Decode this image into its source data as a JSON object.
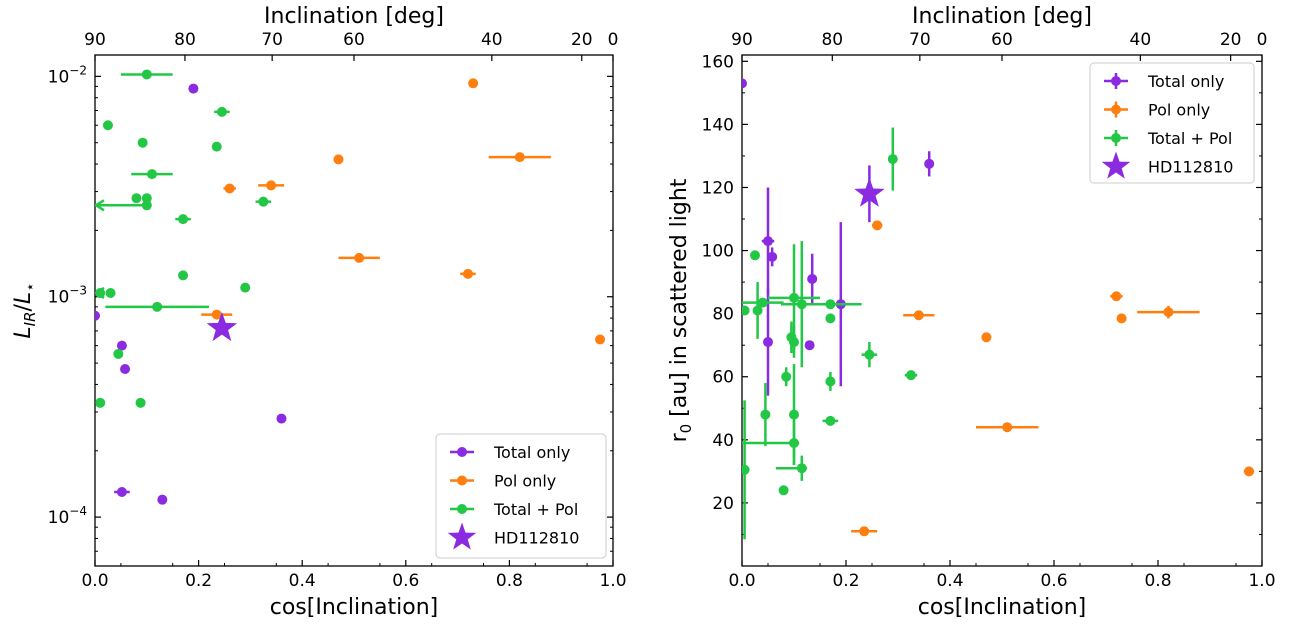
{
  "chart_data": [
    {
      "type": "scatter",
      "xlabel": "cos[Inclination]",
      "ylabel": "L_IR/L_*",
      "top_xlabel": "Inclination [deg]",
      "xlim": [
        0,
        1
      ],
      "ylim": [
        6e-05,
        0.0125
      ],
      "yscale": "log",
      "x_ticks": [
        "0.0",
        "0.2",
        "0.4",
        "0.6",
        "0.8",
        "1.0"
      ],
      "y_ticks": [
        {
          "v": 0.0001,
          "base": "10",
          "exp": "−4"
        },
        {
          "v": 0.001,
          "base": "10",
          "exp": "−3"
        },
        {
          "v": 0.01,
          "base": "10",
          "exp": "−2"
        }
      ],
      "top_ticks": [
        {
          "deg": 90,
          "label": "90"
        },
        {
          "deg": 80,
          "label": "80"
        },
        {
          "deg": 70,
          "label": "70"
        },
        {
          "deg": 60,
          "label": "60"
        },
        {
          "deg": 40,
          "label": "40"
        },
        {
          "deg": 20,
          "label": "20"
        },
        {
          "deg": 0,
          "label": "0"
        }
      ],
      "legend_position": "bottom-right",
      "series": [
        {
          "name": "Total only",
          "color": "#8a2be2",
          "points": [
            {
              "x": 0.19,
              "y": 0.0088
            },
            {
              "x": 0.0,
              "y": 0.00082
            },
            {
              "x": 0.052,
              "y": 0.0006
            },
            {
              "x": 0.058,
              "y": 0.00047
            },
            {
              "x": 0.36,
              "y": 0.00028
            },
            {
              "x": 0.052,
              "y": 0.00013,
              "xerr": 0.015
            },
            {
              "x": 0.13,
              "y": 0.00012
            }
          ]
        },
        {
          "name": "Pol only",
          "color": "#ff7f0e",
          "points": [
            {
              "x": 0.73,
              "y": 0.0093
            },
            {
              "x": 0.47,
              "y": 0.0042
            },
            {
              "x": 0.82,
              "y": 0.0043,
              "xerr": 0.06
            },
            {
              "x": 0.34,
              "y": 0.0032,
              "xerr": 0.025
            },
            {
              "x": 0.26,
              "y": 0.0031,
              "xerr": 0.012
            },
            {
              "x": 0.51,
              "y": 0.0015,
              "xerr": 0.04
            },
            {
              "x": 0.72,
              "y": 0.00127,
              "xerr": 0.015
            },
            {
              "x": 0.235,
              "y": 0.00083,
              "xerr": 0.03
            },
            {
              "x": 0.975,
              "y": 0.00064
            }
          ]
        },
        {
          "name": "Total + Pol",
          "color": "#22c745",
          "points": [
            {
              "x": 0.1,
              "y": 0.0102,
              "xerr": 0.05
            },
            {
              "x": 0.245,
              "y": 0.0069,
              "xerr": 0.015
            },
            {
              "x": 0.025,
              "y": 0.006
            },
            {
              "x": 0.092,
              "y": 0.005
            },
            {
              "x": 0.235,
              "y": 0.0048
            },
            {
              "x": 0.11,
              "y": 0.0036,
              "xerr": 0.04
            },
            {
              "x": 0.08,
              "y": 0.0028
            },
            {
              "x": 0.1,
              "y": 0.0028
            },
            {
              "x": 0.1,
              "y": 0.0026,
              "xleft": 0.1,
              "arrow": "left"
            },
            {
              "x": 0.325,
              "y": 0.0027,
              "xerr": 0.015
            },
            {
              "x": 0.17,
              "y": 0.00225,
              "xerr": 0.015
            },
            {
              "x": 0.17,
              "y": 0.00125
            },
            {
              "x": 0.29,
              "y": 0.0011
            },
            {
              "x": 0.03,
              "y": 0.00104
            },
            {
              "x": 0.01,
              "y": 0.00104,
              "xleft": 0.01,
              "arrow": "left"
            },
            {
              "x": 0.12,
              "y": 0.0009,
              "xleft": 0.1,
              "xright": 0.1
            },
            {
              "x": 0.045,
              "y": 0.00055
            },
            {
              "x": 0.01,
              "y": 0.00033
            },
            {
              "x": 0.088,
              "y": 0.00033
            }
          ]
        }
      ],
      "highlight": {
        "name": "HD112810",
        "color": "#8a2be2",
        "x": 0.245,
        "y": 0.00072,
        "marker": "star"
      }
    },
    {
      "type": "scatter",
      "xlabel": "cos[Inclination]",
      "ylabel": "r0 [au] in scattered light",
      "top_xlabel": "Inclination [deg]",
      "xlim": [
        0,
        1
      ],
      "ylim": [
        0,
        162
      ],
      "yscale": "linear",
      "x_ticks": [
        "0.0",
        "0.2",
        "0.4",
        "0.6",
        "0.8",
        "1.0"
      ],
      "y_ticks": [
        20,
        40,
        60,
        80,
        100,
        120,
        140,
        160
      ],
      "top_ticks": [
        {
          "deg": 90,
          "label": "90"
        },
        {
          "deg": 80,
          "label": "80"
        },
        {
          "deg": 70,
          "label": "70"
        },
        {
          "deg": 60,
          "label": "60"
        },
        {
          "deg": 40,
          "label": "40"
        },
        {
          "deg": 20,
          "label": "20"
        },
        {
          "deg": 0,
          "label": "0"
        }
      ],
      "legend_position": "top-right",
      "series": [
        {
          "name": "Total only",
          "color": "#8a2be2",
          "points": [
            {
              "x": 0.0,
              "y": 153
            },
            {
              "x": 0.36,
              "y": 127.5,
              "yerr": 4
            },
            {
              "x": 0.05,
              "y": 103,
              "yerr": 17,
              "xerr": 0.012
            },
            {
              "x": 0.058,
              "y": 98,
              "yerr": 3
            },
            {
              "x": 0.135,
              "y": 91,
              "yerr": 8
            },
            {
              "x": 0.19,
              "y": 83,
              "yerr": 26
            },
            {
              "x": 0.05,
              "y": 71,
              "yerr": 17
            },
            {
              "x": 0.13,
              "y": 70
            }
          ]
        },
        {
          "name": "Pol only",
          "color": "#ff7f0e",
          "points": [
            {
              "x": 0.26,
              "y": 108,
              "xerr": 0.01
            },
            {
              "x": 0.72,
              "y": 85.5,
              "xerr": 0.012
            },
            {
              "x": 0.82,
              "y": 80.5,
              "xerr": 0.06,
              "yerr": 2
            },
            {
              "x": 0.73,
              "y": 78.5
            },
            {
              "x": 0.34,
              "y": 79.5,
              "xerr": 0.03
            },
            {
              "x": 0.47,
              "y": 72.5
            },
            {
              "x": 0.51,
              "y": 44,
              "xerr": 0.06
            },
            {
              "x": 0.975,
              "y": 30,
              "xerr": 0.01
            },
            {
              "x": 0.235,
              "y": 11,
              "xerr": 0.025
            }
          ]
        },
        {
          "name": "Total + Pol",
          "color": "#22c745",
          "points": [
            {
              "x": 0.29,
              "y": 129,
              "yerr": 10
            },
            {
              "x": 0.025,
              "y": 98.5
            },
            {
              "x": 0.1,
              "y": 85,
              "yerr": 17,
              "xerr": 0.05
            },
            {
              "x": 0.115,
              "y": 83,
              "yerr": 20,
              "xerr": 0.04
            },
            {
              "x": 0.04,
              "y": 83.5,
              "xerr": 0.04
            },
            {
              "x": 0.03,
              "y": 81,
              "yerr": 9
            },
            {
              "x": 0.005,
              "y": 81
            },
            {
              "x": 0.17,
              "y": 83,
              "xerr": 0.06
            },
            {
              "x": 0.17,
              "y": 78.5
            },
            {
              "x": 0.095,
              "y": 72.5,
              "yerr": 5
            },
            {
              "x": 0.1,
              "y": 71,
              "yerr": 5
            },
            {
              "x": 0.245,
              "y": 67,
              "xerr": 0.015,
              "yerr": 4
            },
            {
              "x": 0.085,
              "y": 60,
              "yerr": 3
            },
            {
              "x": 0.17,
              "y": 58.5,
              "yerr": 3
            },
            {
              "x": 0.325,
              "y": 60.5,
              "xerr": 0.012
            },
            {
              "x": 0.045,
              "y": 48,
              "yerr": 10
            },
            {
              "x": 0.1,
              "y": 48,
              "yerr": 16
            },
            {
              "x": 0.17,
              "y": 46,
              "xerr": 0.015
            },
            {
              "x": 0.1,
              "y": 39,
              "xleft": 0.1,
              "xright": 0.01,
              "yerr": 7
            },
            {
              "x": 0.005,
              "y": 30.5,
              "yerr": 22
            },
            {
              "x": 0.115,
              "y": 31,
              "xleft": 0.05,
              "xright": 0.01,
              "yerr": 4
            },
            {
              "x": 0.08,
              "y": 24
            }
          ]
        }
      ],
      "highlight": {
        "name": "HD112810",
        "color": "#8a2be2",
        "x": 0.245,
        "y": 118,
        "yerr": 9,
        "marker": "star"
      }
    }
  ]
}
